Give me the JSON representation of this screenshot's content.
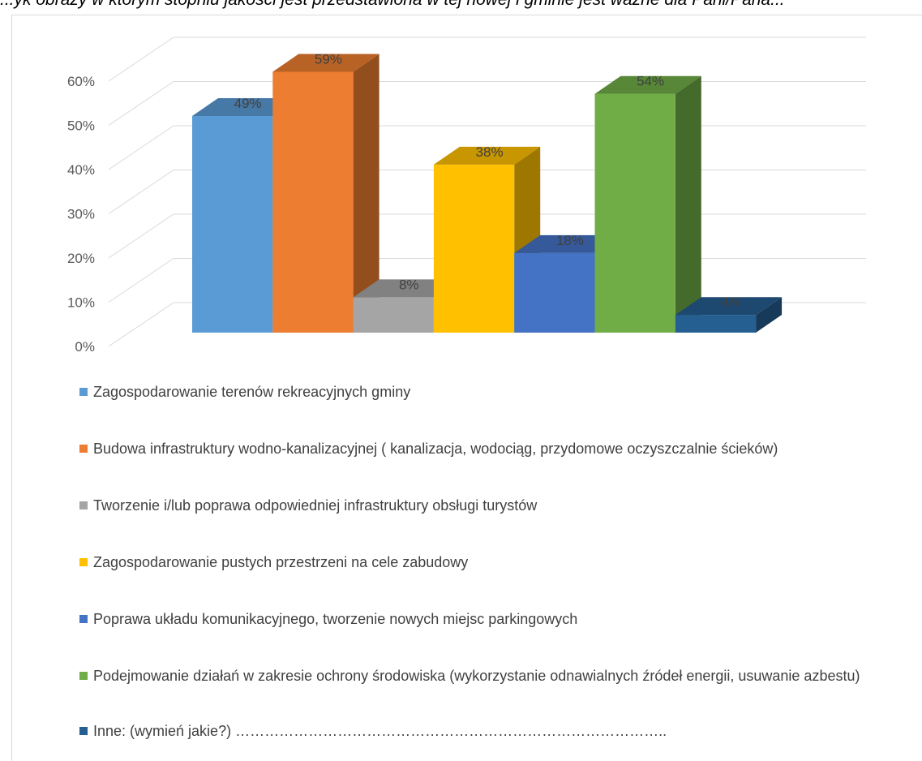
{
  "header_fragment": "...yk obrazy w którym stopniu jakości jest przedstawiona w tej nowej i gminie jest ważne dla Pani/Pana...",
  "chart_data": {
    "type": "bar",
    "style": "3d-clustered-column",
    "title": "",
    "xlabel": "",
    "ylabel": "",
    "ylim": [
      0,
      60
    ],
    "yticks": [
      "0%",
      "10%",
      "20%",
      "30%",
      "40%",
      "50%",
      "60%"
    ],
    "grid": true,
    "legend_position": "bottom",
    "series": [
      {
        "name": "Zagospodarowanie terenów rekreacyjnych gminy",
        "value": 49,
        "label": "49%",
        "color": "#5b9bd5"
      },
      {
        "name": "Budowa infrastruktury wodno-kanalizacyjnej ( kanalizacja, wodociąg, przydomowe oczyszczalnie ścieków)",
        "value": 59,
        "label": "59%",
        "color": "#ed7d31"
      },
      {
        "name": "Tworzenie i/lub poprawa odpowiedniej infrastruktury obsługi turystów",
        "value": 8,
        "label": "8%",
        "color": "#a5a5a5"
      },
      {
        "name": "Zagospodarowanie pustych przestrzeni na cele zabudowy",
        "value": 38,
        "label": "38%",
        "color": "#ffc000"
      },
      {
        "name": "Poprawa układu komunikacyjnego, tworzenie nowych miejsc parkingowych",
        "value": 18,
        "label": "18%",
        "color": "#4472c4"
      },
      {
        "name": "Podejmowanie działań w zakresie ochrony środowiska (wykorzystanie odnawialnych źródeł energii, usuwanie azbestu)",
        "value": 54,
        "label": "54%",
        "color": "#70ad47"
      },
      {
        "name": "Inne: (wymień jakie?) ……………………………………………………………………………..",
        "value": 4,
        "label": "4%",
        "color": "#255e91"
      }
    ]
  }
}
